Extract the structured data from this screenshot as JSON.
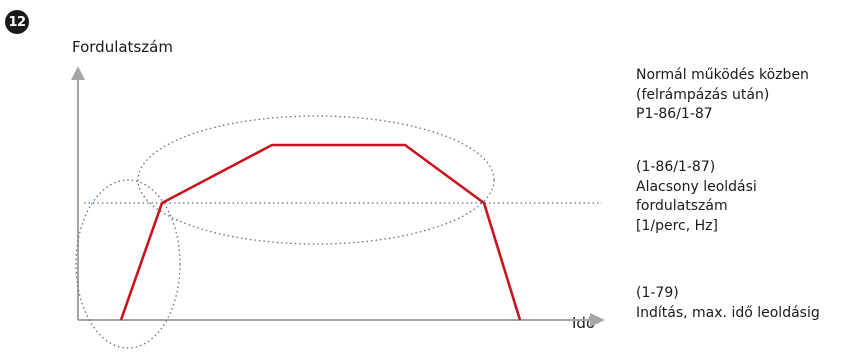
{
  "badge": "12",
  "y_axis_label": "Fordulatszám",
  "x_axis_label": "Idő",
  "notes": {
    "normal": [
      "Normál működés közben",
      "(felrámpázás után)",
      "P1-86/1-87"
    ],
    "low_trip": [
      "(1-86/1-87)",
      "Alacsony leoldási",
      "fordulatszám",
      "[1/perc, Hz]"
    ],
    "start": [
      "(1-79)",
      "Indítás, max. idő leoldásig"
    ]
  },
  "colors": {
    "speed_curve": "#c8141e",
    "axes": "#a6a6a6",
    "dotted": "#5a6f8c",
    "text": "#1a1a1a"
  }
}
